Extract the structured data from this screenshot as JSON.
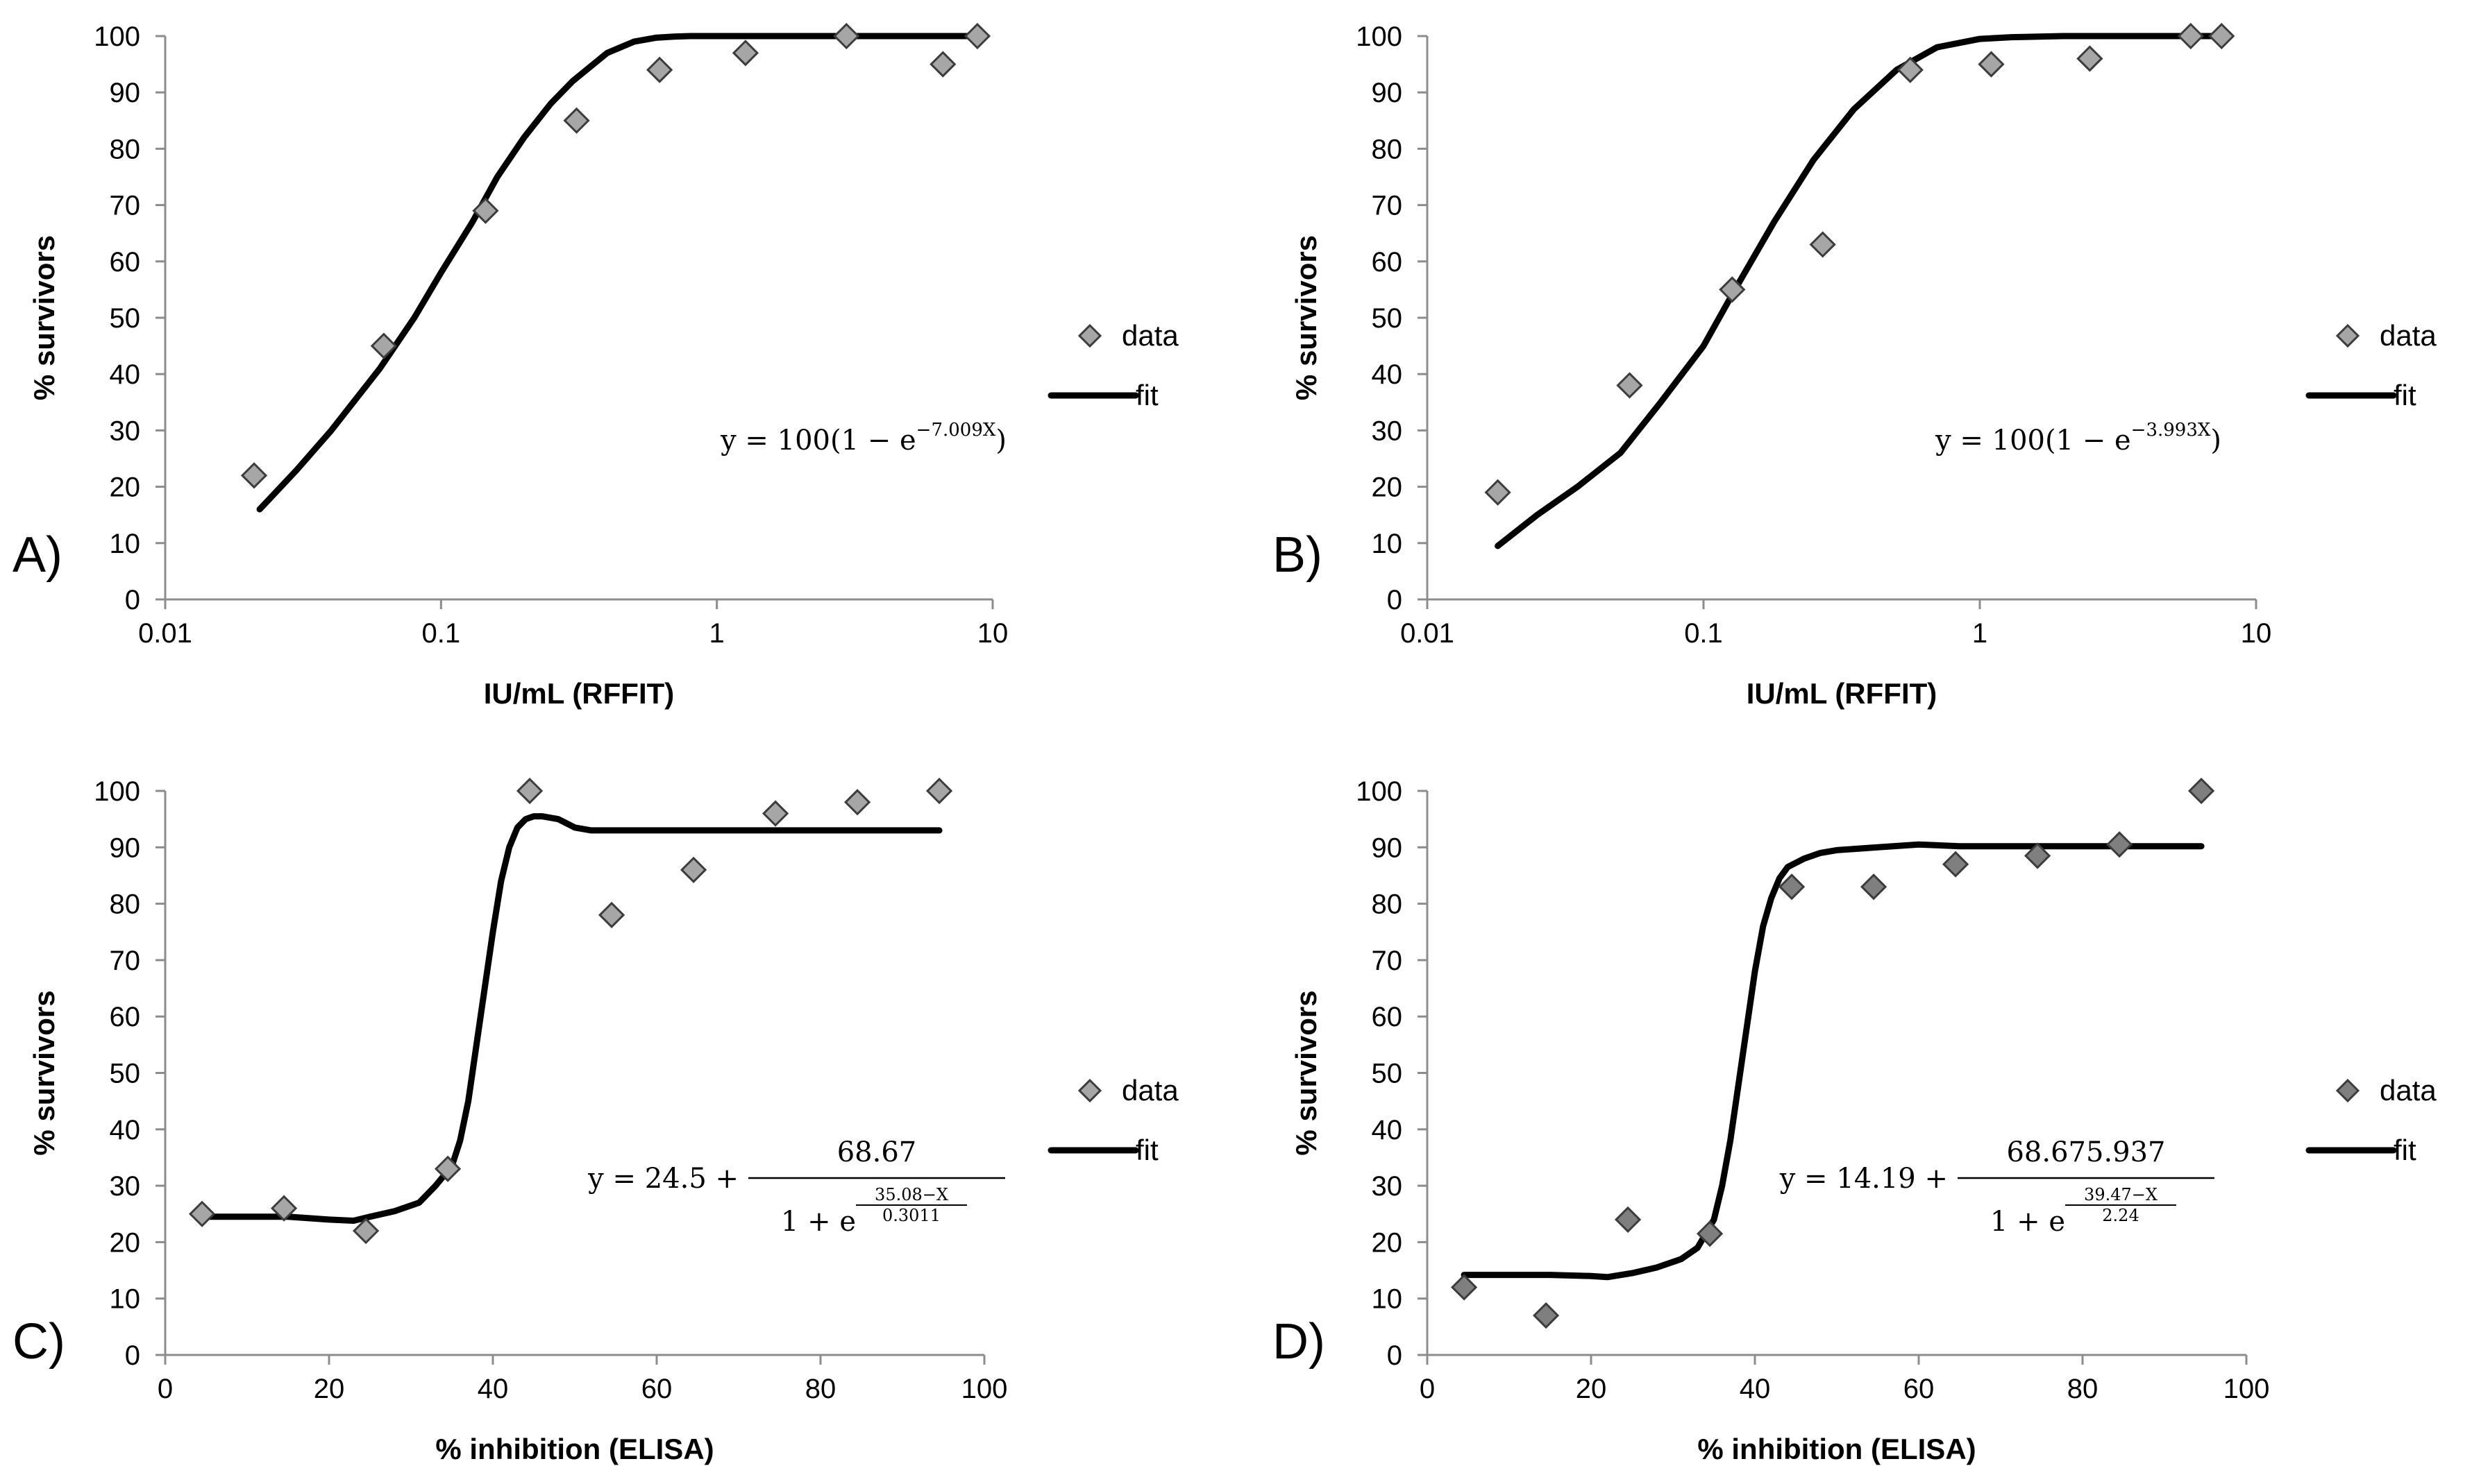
{
  "chart_data": [
    {
      "type": "scatter",
      "panel_label": "A)",
      "xlabel": "IU/mL (RFFIT)",
      "ylabel": "% survivors",
      "xscale": "log",
      "xlim": [
        0.01,
        10
      ],
      "ylim": [
        0,
        100
      ],
      "x_ticks": [
        "0.01",
        "0.1",
        "1",
        "10"
      ],
      "y_ticks": [
        "0",
        "10",
        "20",
        "30",
        "40",
        "50",
        "60",
        "70",
        "80",
        "90",
        "100"
      ],
      "legend": [
        "data",
        "fit"
      ],
      "legend_position": "right",
      "series": [
        {
          "name": "data",
          "marker": "diamond",
          "color": "#a6a6a6",
          "x": [
            0.021,
            0.062,
            0.145,
            0.31,
            0.62,
            1.27,
            2.95,
            6.6,
            8.8
          ],
          "y": [
            22,
            45,
            69,
            85,
            94,
            97,
            100,
            95,
            100
          ]
        },
        {
          "name": "fit",
          "line": "solid",
          "color": "#000000",
          "x": [
            0.022,
            0.03,
            0.04,
            0.06,
            0.08,
            0.1,
            0.13,
            0.16,
            0.2,
            0.25,
            0.3,
            0.4,
            0.5,
            0.6,
            0.7,
            0.8,
            1,
            2,
            4,
            8.8
          ],
          "y": [
            16,
            23,
            30,
            41,
            50,
            58,
            67,
            75,
            82,
            88,
            92,
            97,
            99,
            99.7,
            99.9,
            100,
            100,
            100,
            100,
            100
          ]
        }
      ],
      "equation": {
        "prefix": "y = 100(1 − e",
        "exponent": "−7.009X",
        "suffix": ")"
      }
    },
    {
      "type": "scatter",
      "panel_label": "B)",
      "xlabel": "IU/mL (RFFIT)",
      "ylabel": "% survivors",
      "xscale": "log",
      "xlim": [
        0.01,
        10
      ],
      "ylim": [
        0,
        100
      ],
      "x_ticks": [
        "0.01",
        "0.1",
        "1",
        "10"
      ],
      "y_ticks": [
        "0",
        "10",
        "20",
        "30",
        "40",
        "50",
        "60",
        "70",
        "80",
        "90",
        "100"
      ],
      "legend": [
        "data",
        "fit"
      ],
      "legend_position": "right",
      "series": [
        {
          "name": "data",
          "marker": "diamond",
          "color": "#a6a6a6",
          "x": [
            0.018,
            0.054,
            0.127,
            0.27,
            0.56,
            1.1,
            2.5,
            5.8,
            7.5
          ],
          "y": [
            19,
            38,
            55,
            63,
            94,
            95,
            96,
            100,
            100
          ]
        },
        {
          "name": "fit",
          "line": "solid",
          "color": "#000000",
          "x": [
            0.018,
            0.025,
            0.035,
            0.05,
            0.07,
            0.1,
            0.13,
            0.18,
            0.25,
            0.35,
            0.5,
            0.7,
            1,
            1.3,
            2,
            4,
            8
          ],
          "y": [
            9.5,
            15,
            20,
            26,
            35,
            45,
            55,
            67,
            78,
            87,
            94,
            98,
            99.5,
            99.8,
            100,
            100,
            100
          ]
        }
      ],
      "equation": {
        "prefix": "y = 100(1 − e",
        "exponent": "−3.993X",
        "suffix": ")"
      }
    },
    {
      "type": "scatter",
      "panel_label": "C)",
      "xlabel": "% inhibition (ELISA)",
      "ylabel": "% survivors",
      "xscale": "linear",
      "xlim": [
        0,
        100
      ],
      "ylim": [
        0,
        100
      ],
      "x_ticks": [
        "0",
        "20",
        "40",
        "60",
        "80",
        "100"
      ],
      "y_ticks": [
        "0",
        "10",
        "20",
        "30",
        "40",
        "50",
        "60",
        "70",
        "80",
        "90",
        "100"
      ],
      "legend": [
        "data",
        "fit"
      ],
      "legend_position": "right",
      "series": [
        {
          "name": "data",
          "marker": "diamond",
          "color": "#a6a6a6",
          "x": [
            4.5,
            14.5,
            24.5,
            34.5,
            44.5,
            54.5,
            64.5,
            74.5,
            84.5,
            94.5
          ],
          "y": [
            25,
            26,
            22,
            33,
            100,
            78,
            86,
            96,
            98,
            100
          ]
        },
        {
          "name": "fit",
          "line": "solid",
          "color": "#000000",
          "x": [
            4.5,
            10,
            15,
            20,
            23,
            25,
            28,
            31,
            33,
            35,
            36,
            37,
            38,
            39,
            40,
            41,
            42,
            43,
            44,
            45,
            46,
            48,
            50,
            52,
            55,
            60,
            70,
            80,
            94.5
          ],
          "y": [
            24.5,
            24.5,
            24.5,
            24,
            23.8,
            24.5,
            25.5,
            27,
            30,
            33.5,
            38,
            45,
            55,
            65,
            75,
            84,
            90,
            93.5,
            95,
            95.5,
            95.5,
            95,
            93.5,
            93,
            93,
            93,
            93,
            93,
            93
          ]
        }
      ],
      "equation": {
        "prefix": "y = 24.5 +",
        "numerator": "68.67",
        "denominator_base": "1 + e",
        "exp_numerator": "35.08−X",
        "exp_denominator": "0.3011"
      }
    },
    {
      "type": "scatter",
      "panel_label": "D)",
      "xlabel": "% inhibition (ELISA)",
      "ylabel": "% survivors",
      "xscale": "linear",
      "xlim": [
        0,
        100
      ],
      "ylim": [
        0,
        100
      ],
      "x_ticks": [
        "0",
        "20",
        "40",
        "60",
        "80",
        "100"
      ],
      "y_ticks": [
        "0",
        "10",
        "20",
        "30",
        "40",
        "50",
        "60",
        "70",
        "80",
        "90",
        "100"
      ],
      "legend": [
        "data",
        "fit"
      ],
      "legend_position": "right",
      "series": [
        {
          "name": "data",
          "marker": "diamond",
          "color": "#7f7f7f",
          "x": [
            4.5,
            14.5,
            24.5,
            34.5,
            44.5,
            54.5,
            64.5,
            74.5,
            84.5,
            94.5
          ],
          "y": [
            12,
            7,
            24,
            21.5,
            83,
            83,
            87,
            88.5,
            90.5,
            100
          ]
        },
        {
          "name": "fit",
          "line": "solid",
          "color": "#000000",
          "x": [
            4.5,
            10,
            15,
            20,
            22,
            25,
            28,
            31,
            33,
            35,
            36,
            37,
            38,
            39,
            40,
            41,
            42,
            43,
            44,
            46,
            48,
            50,
            55,
            60,
            65,
            70,
            80,
            94.5
          ],
          "y": [
            14.2,
            14.2,
            14.2,
            14,
            13.8,
            14.5,
            15.5,
            17,
            19,
            24,
            30,
            38,
            48,
            58,
            68,
            76,
            81,
            84.5,
            86.5,
            88,
            89,
            89.5,
            90,
            90.5,
            90.2,
            90.2,
            90.2,
            90.2
          ]
        }
      ],
      "equation": {
        "prefix": "y = 14.19 +",
        "numerator": "68.675.937",
        "denominator_base": "1 + e",
        "exp_numerator": "39.47−X",
        "exp_denominator": "2.24"
      }
    }
  ]
}
